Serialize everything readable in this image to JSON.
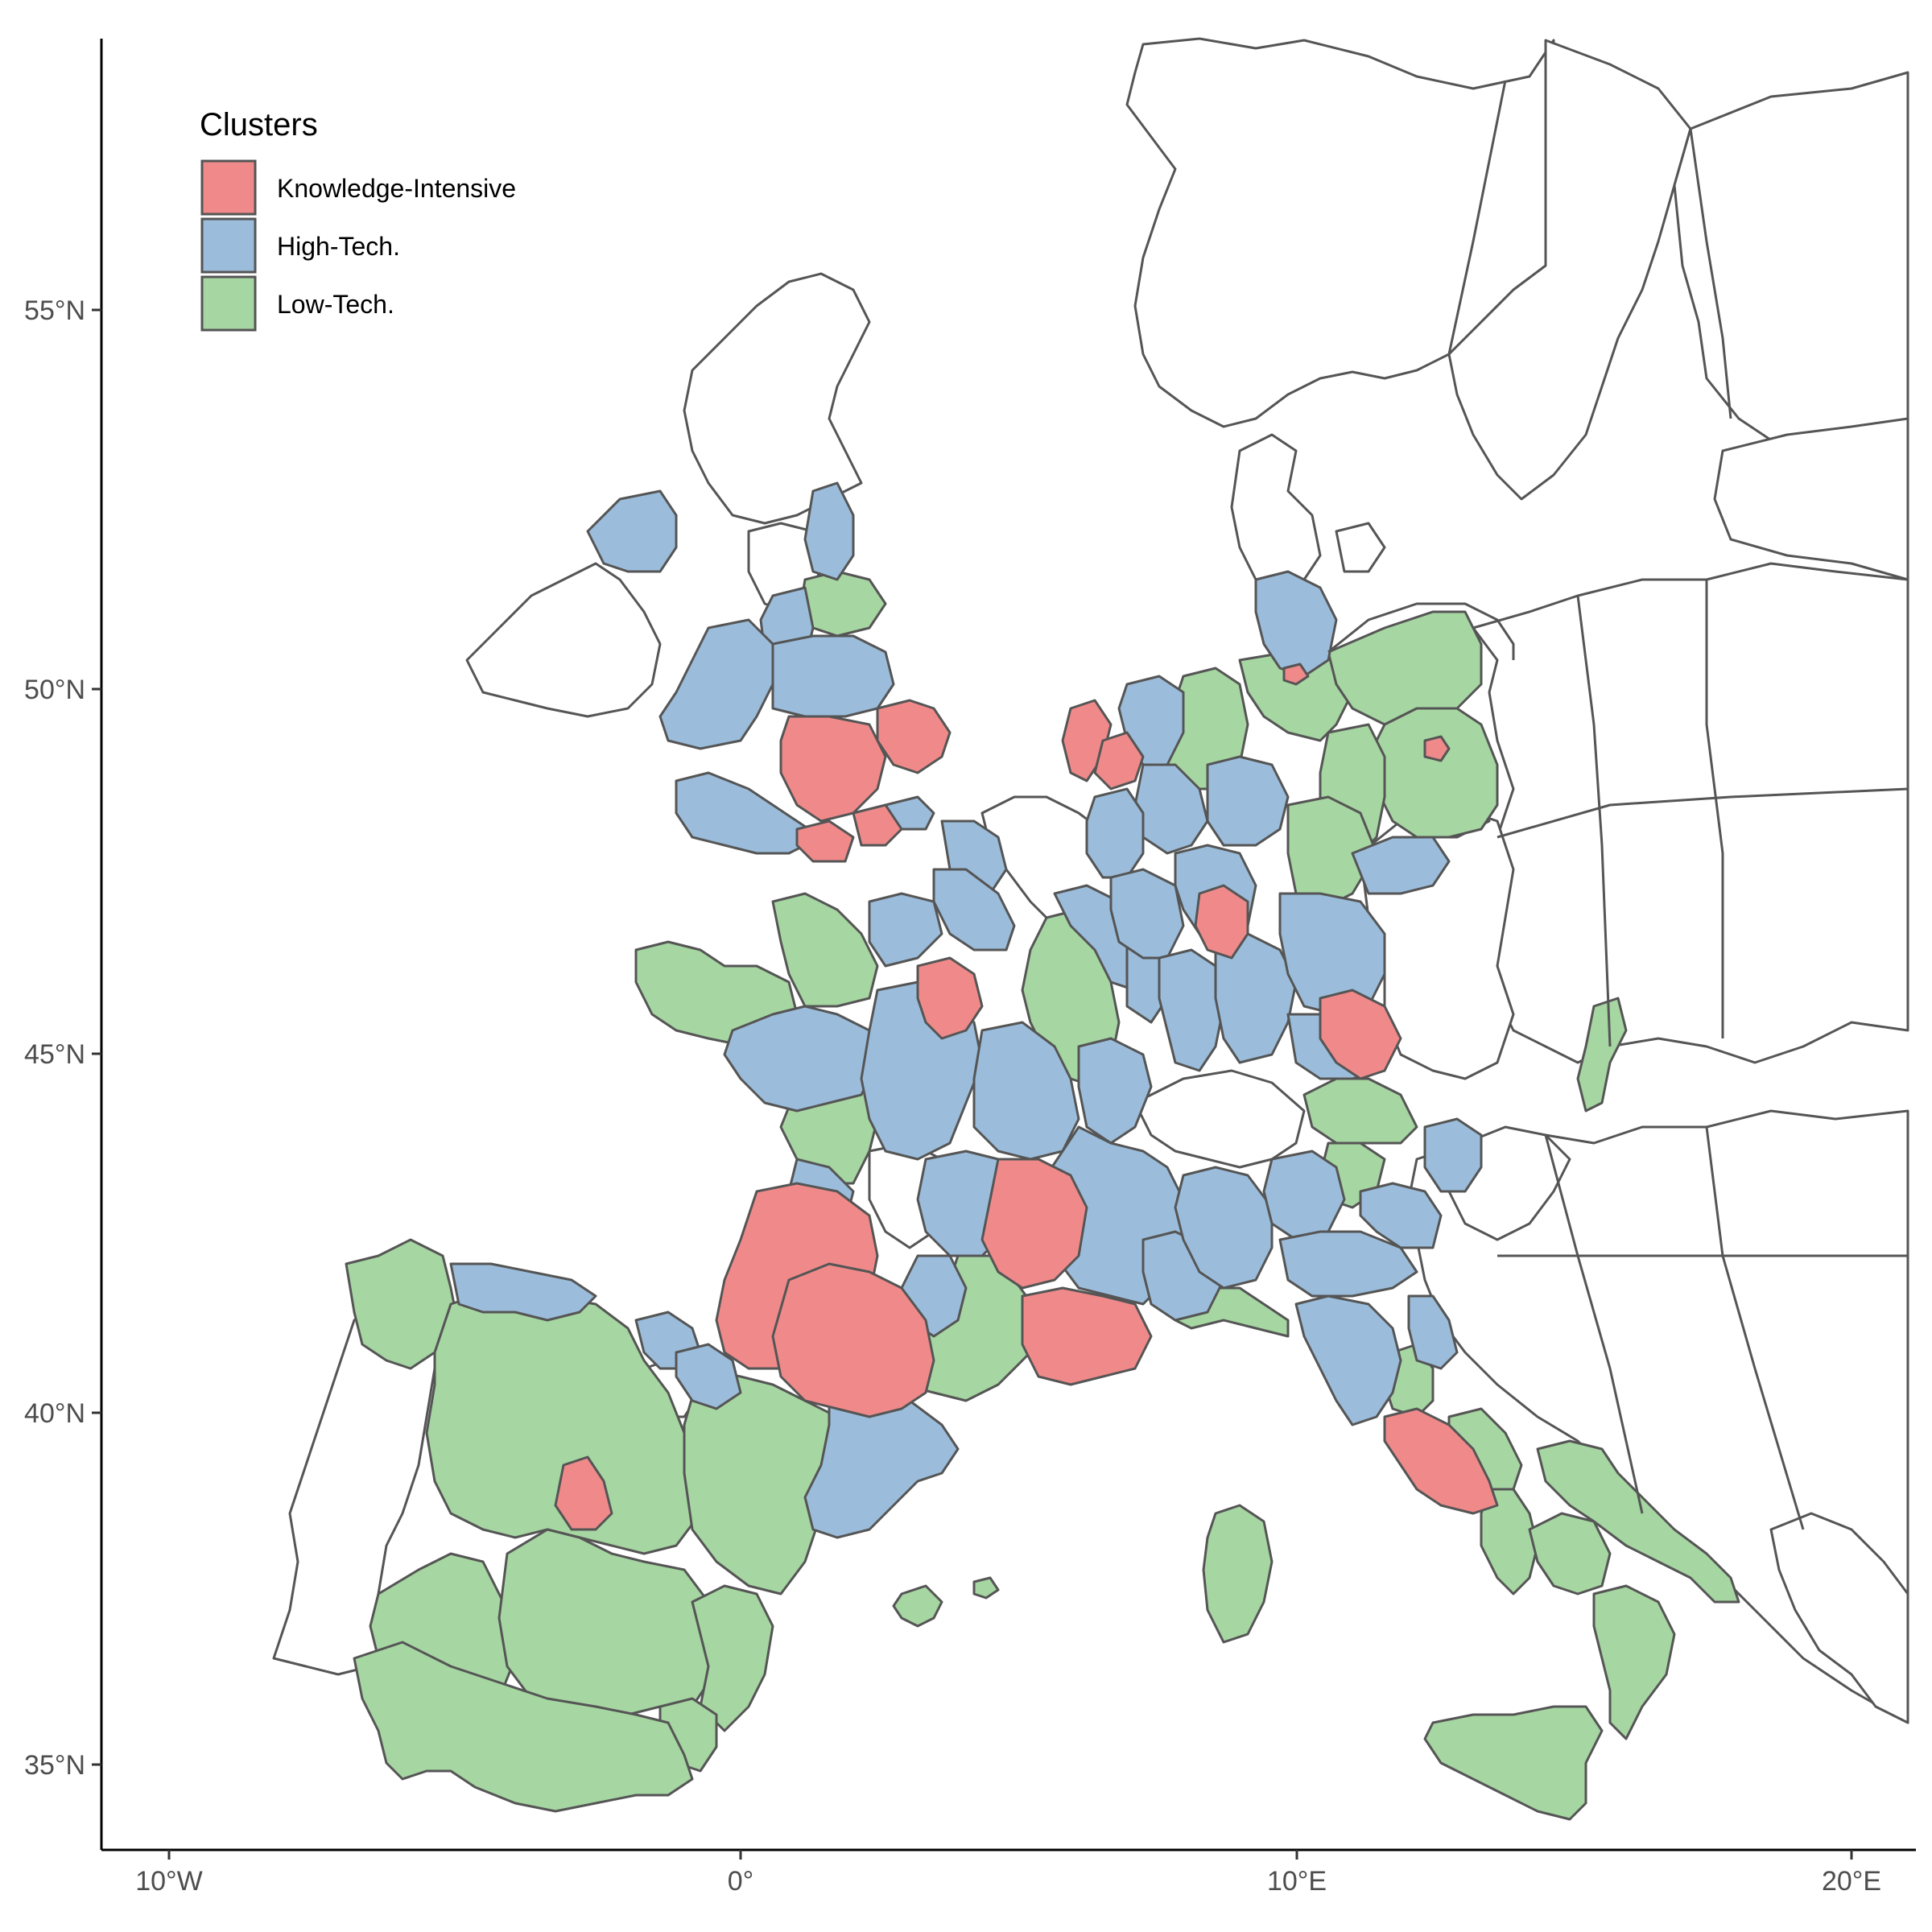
{
  "legend": {
    "title": "Clusters",
    "items": [
      {
        "label": "Knowledge-Intensive",
        "color": "#f08a8a"
      },
      {
        "label": "High-Tech.",
        "color": "#9bbddb"
      },
      {
        "label": "Low-Tech.",
        "color": "#a6d6a2"
      }
    ]
  },
  "axes": {
    "x_ticks": [
      "10°W",
      "0°",
      "10°E",
      "20°E"
    ],
    "y_ticks": [
      "55°N",
      "50°N",
      "45°N",
      "40°N",
      "35°N"
    ]
  },
  "colors": {
    "knowledge_intensive": "#f08a8a",
    "high_tech": "#9bbddb",
    "low_tech": "#a6d6a2",
    "no_data": "#ffffff",
    "border": "#555555"
  }
}
